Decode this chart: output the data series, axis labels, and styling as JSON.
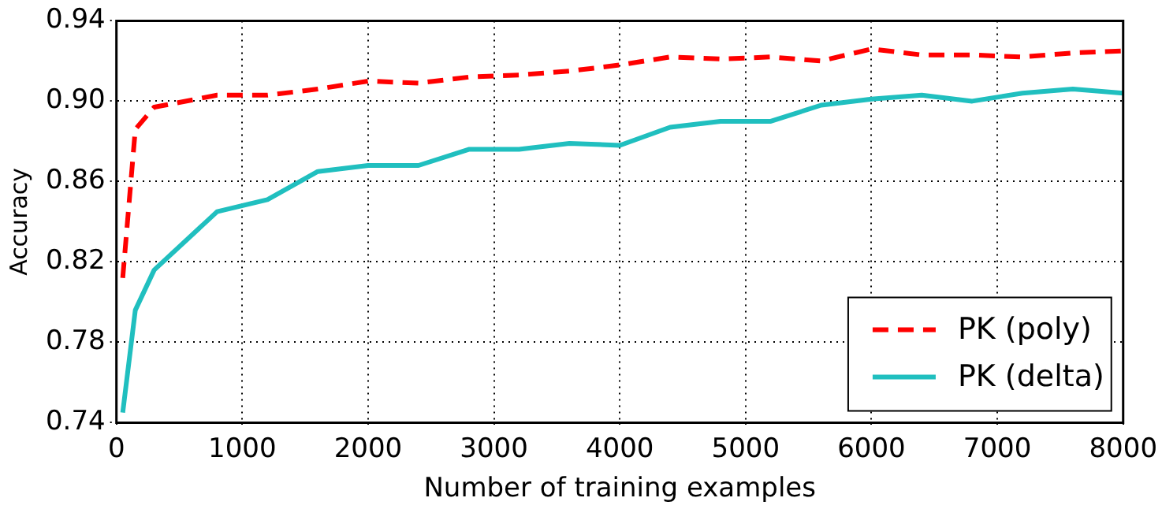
{
  "chart_data": {
    "type": "line",
    "xlabel": "Number of training examples",
    "ylabel": "Accuracy",
    "x": [
      50,
      150,
      300,
      800,
      1200,
      1600,
      2000,
      2400,
      2800,
      3200,
      3600,
      4000,
      4400,
      4800,
      5200,
      5600,
      6000,
      6400,
      6800,
      7200,
      7600,
      8000
    ],
    "series": [
      {
        "name": "PK (poly)",
        "color": "#ff0000",
        "line_style": "dashed",
        "values": [
          0.812,
          0.886,
          0.897,
          0.903,
          0.903,
          0.906,
          0.91,
          0.909,
          0.912,
          0.913,
          0.915,
          0.918,
          0.922,
          0.921,
          0.922,
          0.92,
          0.926,
          0.923,
          0.923,
          0.922,
          0.924,
          0.925
        ]
      },
      {
        "name": "PK (delta)",
        "color": "#20bfbf",
        "line_style": "solid",
        "values": [
          0.745,
          0.796,
          0.816,
          0.845,
          0.851,
          0.865,
          0.868,
          0.868,
          0.876,
          0.876,
          0.879,
          0.878,
          0.887,
          0.89,
          0.89,
          0.898,
          0.901,
          0.903,
          0.9,
          0.904,
          0.906,
          0.904
        ]
      }
    ],
    "xlim": [
      0,
      8000
    ],
    "xticks": [
      0,
      1000,
      2000,
      3000,
      4000,
      5000,
      6000,
      7000,
      8000
    ],
    "ylim": [
      0.74,
      0.94
    ],
    "yticks": [
      0.74,
      0.78,
      0.82,
      0.86,
      {
        "value": 0.9,
        "label": "0.90"
      },
      0.94
    ],
    "grid": true,
    "legend": "bottom right",
    "marker": "none"
  }
}
